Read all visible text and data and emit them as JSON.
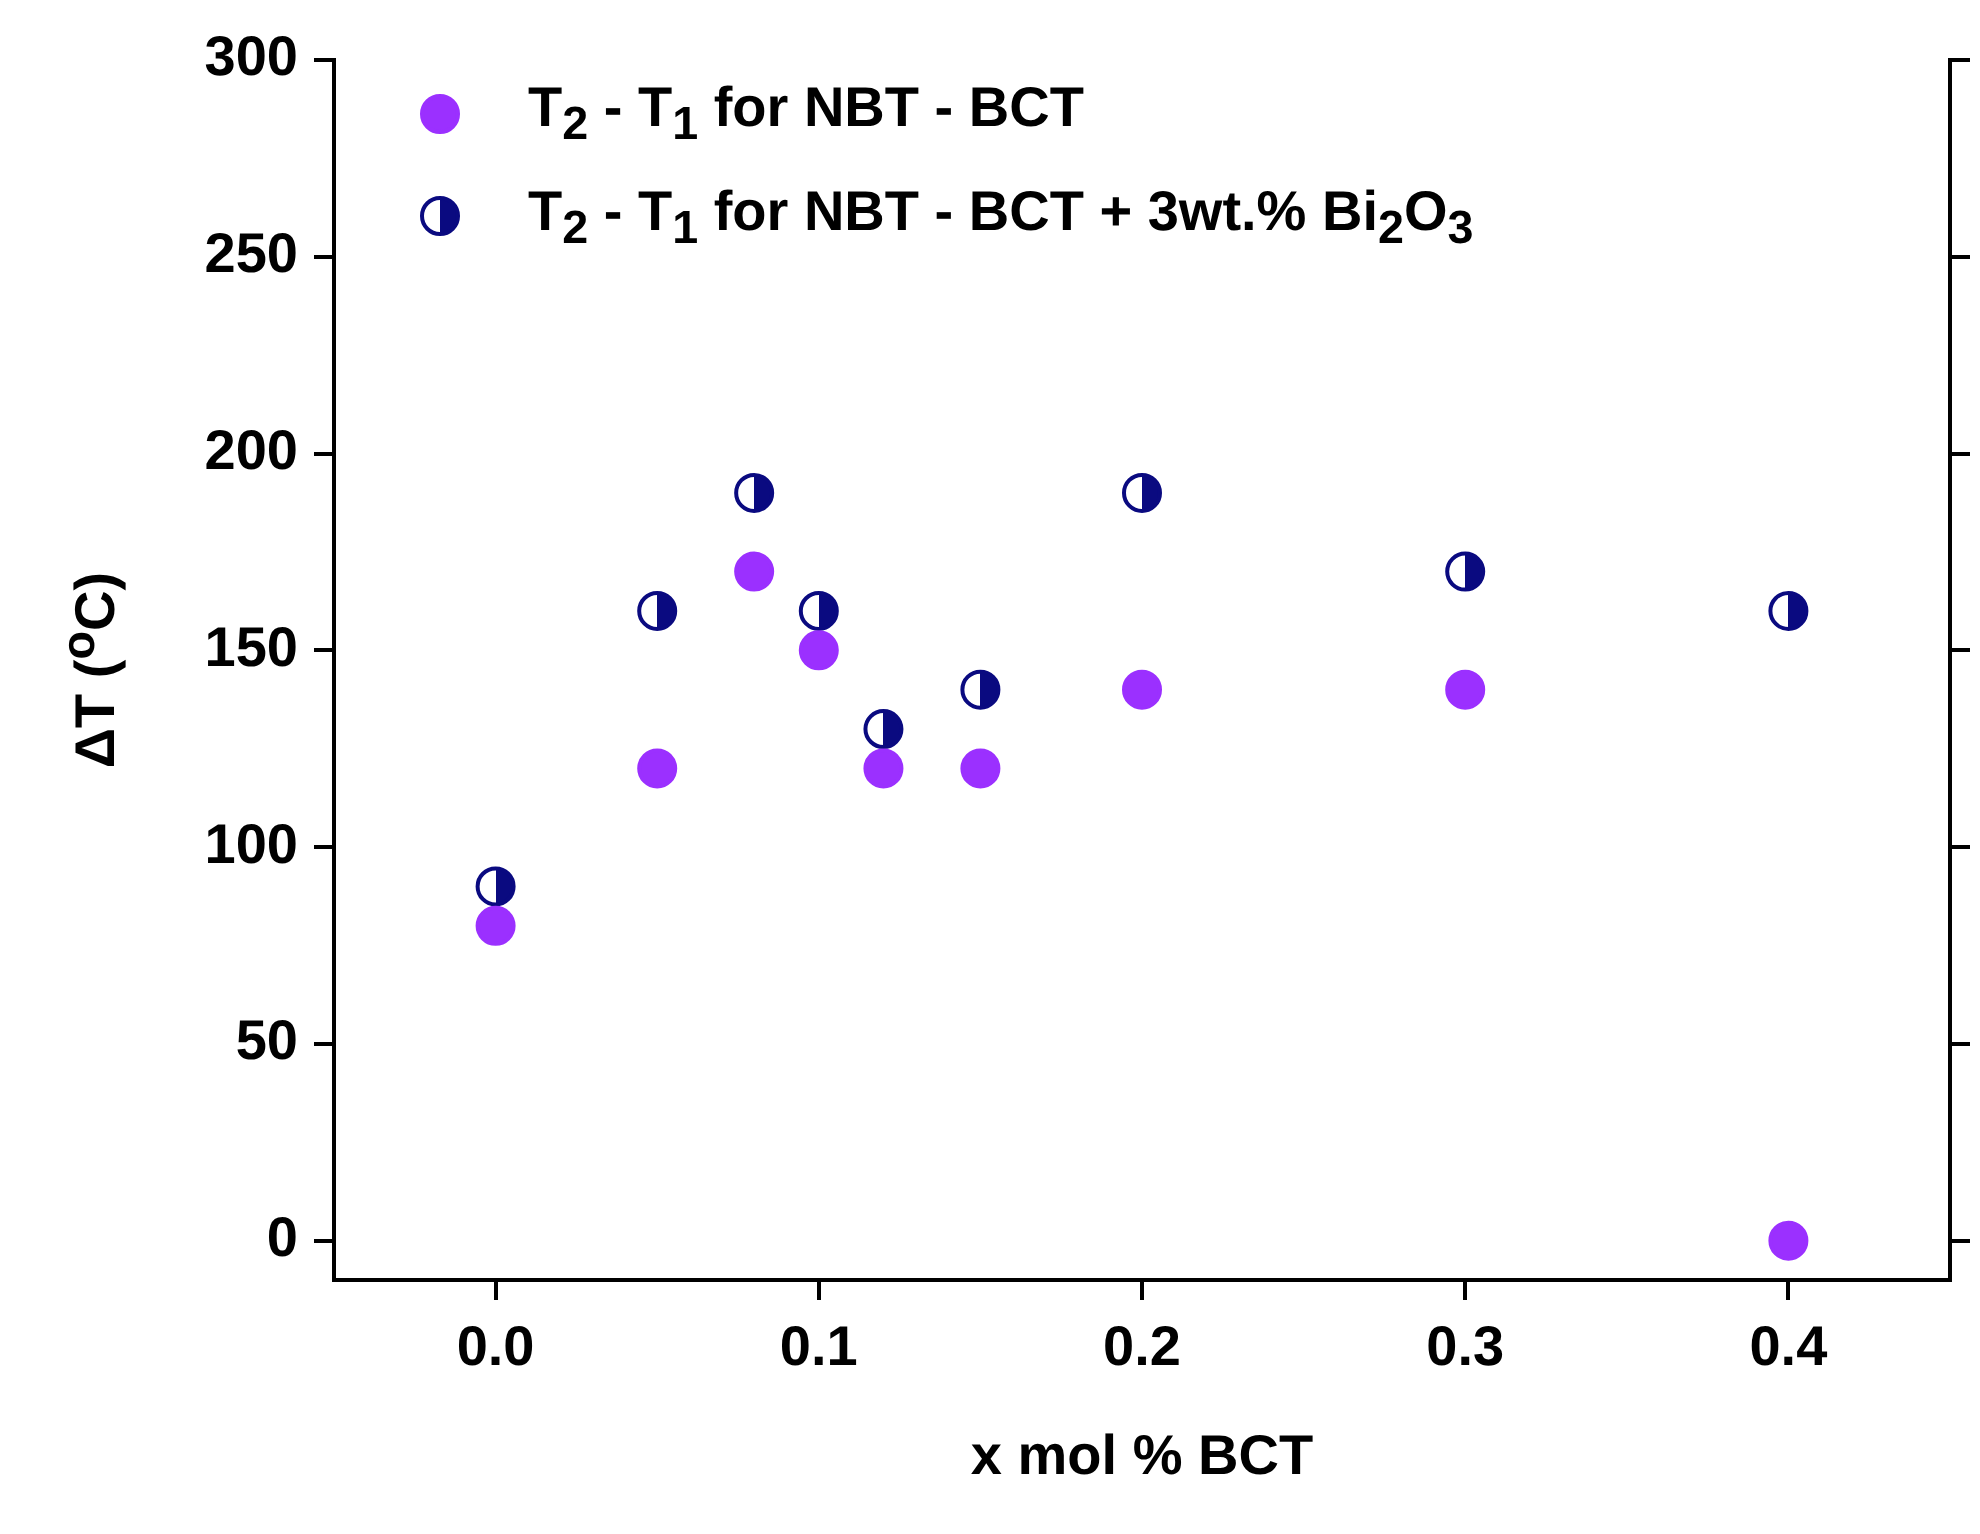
{
  "chart_data": {
    "type": "scatter",
    "xlabel": "x mol % BCT",
    "ylabel": "ΔT ($^{o}$C)",
    "xlim": [
      -0.05,
      0.45
    ],
    "xticks": [
      {
        "value": 0,
        "label": "0.0"
      },
      {
        "value": 0.1,
        "label": "0.1"
      },
      {
        "value": 0.2,
        "label": "0.2"
      },
      {
        "value": 0.3,
        "label": "0.3"
      },
      {
        "value": 0.4,
        "label": "0.4"
      }
    ],
    "ylim": [
      -10,
      300
    ],
    "yticks": [
      0,
      50,
      100,
      150,
      200,
      250,
      300
    ],
    "grid": false,
    "legend": "top left",
    "marker": "circle",
    "series": [
      {
        "name": "T$_{2}$ - T$_{1}$ for NBT - BCT",
        "color": "#9b30ff",
        "x": [
          0,
          0.05,
          0.08,
          0.1,
          0.12,
          0.15,
          0.2,
          0.3,
          0.4
        ],
        "values": [
          80,
          120,
          170,
          150,
          120,
          120,
          140,
          140,
          0
        ]
      },
      {
        "name": "T$_{2}$ - T$_{1}$ for NBT - BCT + 3wt.% Bi$_{2}$O$_{3}$",
        "color": "#0a0a80",
        "x": [
          0,
          0.05,
          0.08,
          0.1,
          0.12,
          0.15,
          0.2,
          0.3,
          0.4
        ],
        "values": [
          90,
          160,
          190,
          160,
          130,
          140,
          190,
          170,
          160
        ]
      }
    ]
  }
}
